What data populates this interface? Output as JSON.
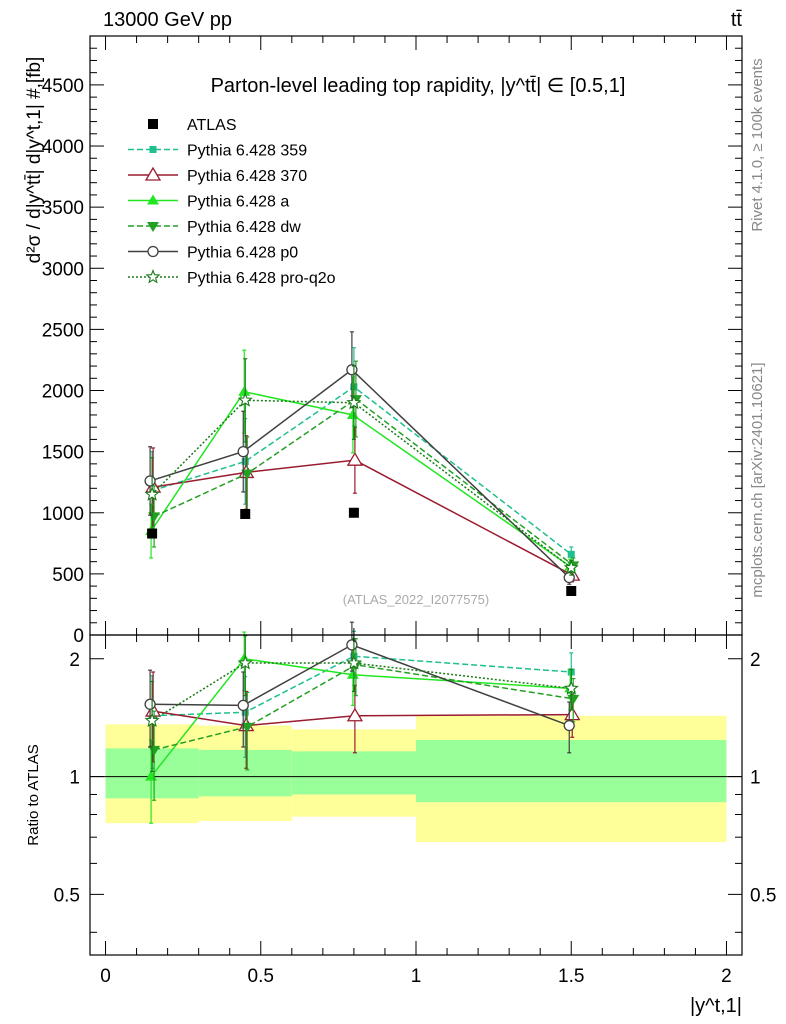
{
  "header": {
    "energy_label": "13000 GeV pp",
    "process_label": "tt̄"
  },
  "side_text": {
    "rivet": "Rivet 4.1.0, ≥ 100k events",
    "mcplots": "mcplots.cern.ch [arXiv:2401.10621]"
  },
  "chart_data": {
    "type": "line",
    "title": "Parton-level leading top rapidity, |y^tt̄| ∈ [0.5,1]",
    "watermark": "(ATLAS_2022_I2077575)",
    "xlabel": "|y^t,1|",
    "ylabel": "d²σ / d|y^tt̄| d|y^t,1| #,[fb]",
    "ratio_ylabel": "Ratio to ATLAS",
    "xlim": [
      -0.05,
      2.05
    ],
    "ylim": [
      0,
      4900
    ],
    "ratio_ylim": [
      0.35,
      2.3
    ],
    "x_ticks": [
      "0",
      "0.5",
      "1",
      "1.5",
      "2"
    ],
    "y_ticks": [
      "0",
      "500",
      "1000",
      "1500",
      "2000",
      "2500",
      "3000",
      "3500",
      "4000",
      "4500"
    ],
    "ratio_ticks": [
      "0.5",
      "1",
      "2"
    ],
    "x": [
      0.15,
      0.45,
      0.8,
      1.5
    ],
    "bin_edges": [
      0,
      0.3,
      0.6,
      1.0,
      2.0
    ],
    "atlas": {
      "name": "ATLAS",
      "values": [
        830,
        990,
        1000,
        360
      ]
    },
    "band_green": {
      "low": [
        0.88,
        0.89,
        0.9,
        0.86
      ],
      "high": [
        1.18,
        1.17,
        1.16,
        1.24
      ]
    },
    "band_yellow": {
      "low": [
        0.76,
        0.77,
        0.79,
        0.68
      ],
      "high": [
        1.36,
        1.35,
        1.32,
        1.43
      ]
    },
    "series": [
      {
        "name": "Pythia 6.428 359",
        "color": "#1fbf8f",
        "dash": "6,3",
        "marker": "square-small",
        "values": [
          1180,
          1420,
          2030,
          660
        ],
        "errors": [
          320,
          350,
          320,
          60
        ],
        "ratio": [
          1.43,
          1.46,
          2.03,
          1.85
        ],
        "ratio_err": [
          0.38,
          0.34,
          0.32,
          0.22
        ]
      },
      {
        "name": "Pythia 6.428 370",
        "color": "#9a1b2f",
        "dash": "",
        "marker": "triangle-open",
        "values": [
          1210,
          1330,
          1430,
          490
        ],
        "errors": [
          320,
          300,
          270,
          55
        ],
        "ratio": [
          1.47,
          1.35,
          1.43,
          1.44
        ],
        "ratio_err": [
          0.38,
          0.3,
          0.28,
          0.18
        ]
      },
      {
        "name": "Pythia 6.428 a",
        "color": "#22e622",
        "dash": "",
        "marker": "triangle",
        "values": [
          850,
          1990,
          1800,
          560
        ],
        "errors": [
          220,
          340,
          310,
          60
        ],
        "ratio": [
          1.0,
          2.0,
          1.82,
          1.68
        ],
        "ratio_err": [
          0.24,
          0.34,
          0.3,
          0.2
        ]
      },
      {
        "name": "Pythia 6.428 dw",
        "color": "#22a022",
        "dash": "6,3",
        "marker": "triangle-down",
        "values": [
          970,
          1320,
          1930,
          570
        ],
        "errors": [
          250,
          300,
          310,
          60
        ],
        "ratio": [
          1.17,
          1.34,
          1.93,
          1.58
        ],
        "ratio_err": [
          0.3,
          0.3,
          0.32,
          0.2
        ]
      },
      {
        "name": "Pythia 6.428 p0",
        "color": "#404040",
        "dash": "",
        "marker": "circle-open",
        "values": [
          1260,
          1500,
          2170,
          470
        ],
        "errors": [
          280,
          330,
          310,
          55
        ],
        "ratio": [
          1.53,
          1.52,
          2.17,
          1.35
        ],
        "ratio_err": [
          0.34,
          0.33,
          0.31,
          0.2
        ]
      },
      {
        "name": "Pythia 6.428 pro-q2o",
        "color": "#1a7a1a",
        "dash": "2,2",
        "marker": "star",
        "values": [
          1150,
          1920,
          1900,
          550
        ],
        "errors": [
          300,
          340,
          300,
          60
        ],
        "ratio": [
          1.39,
          1.95,
          1.95,
          1.68
        ],
        "ratio_err": [
          0.36,
          0.34,
          0.3,
          0.2
        ]
      }
    ]
  }
}
